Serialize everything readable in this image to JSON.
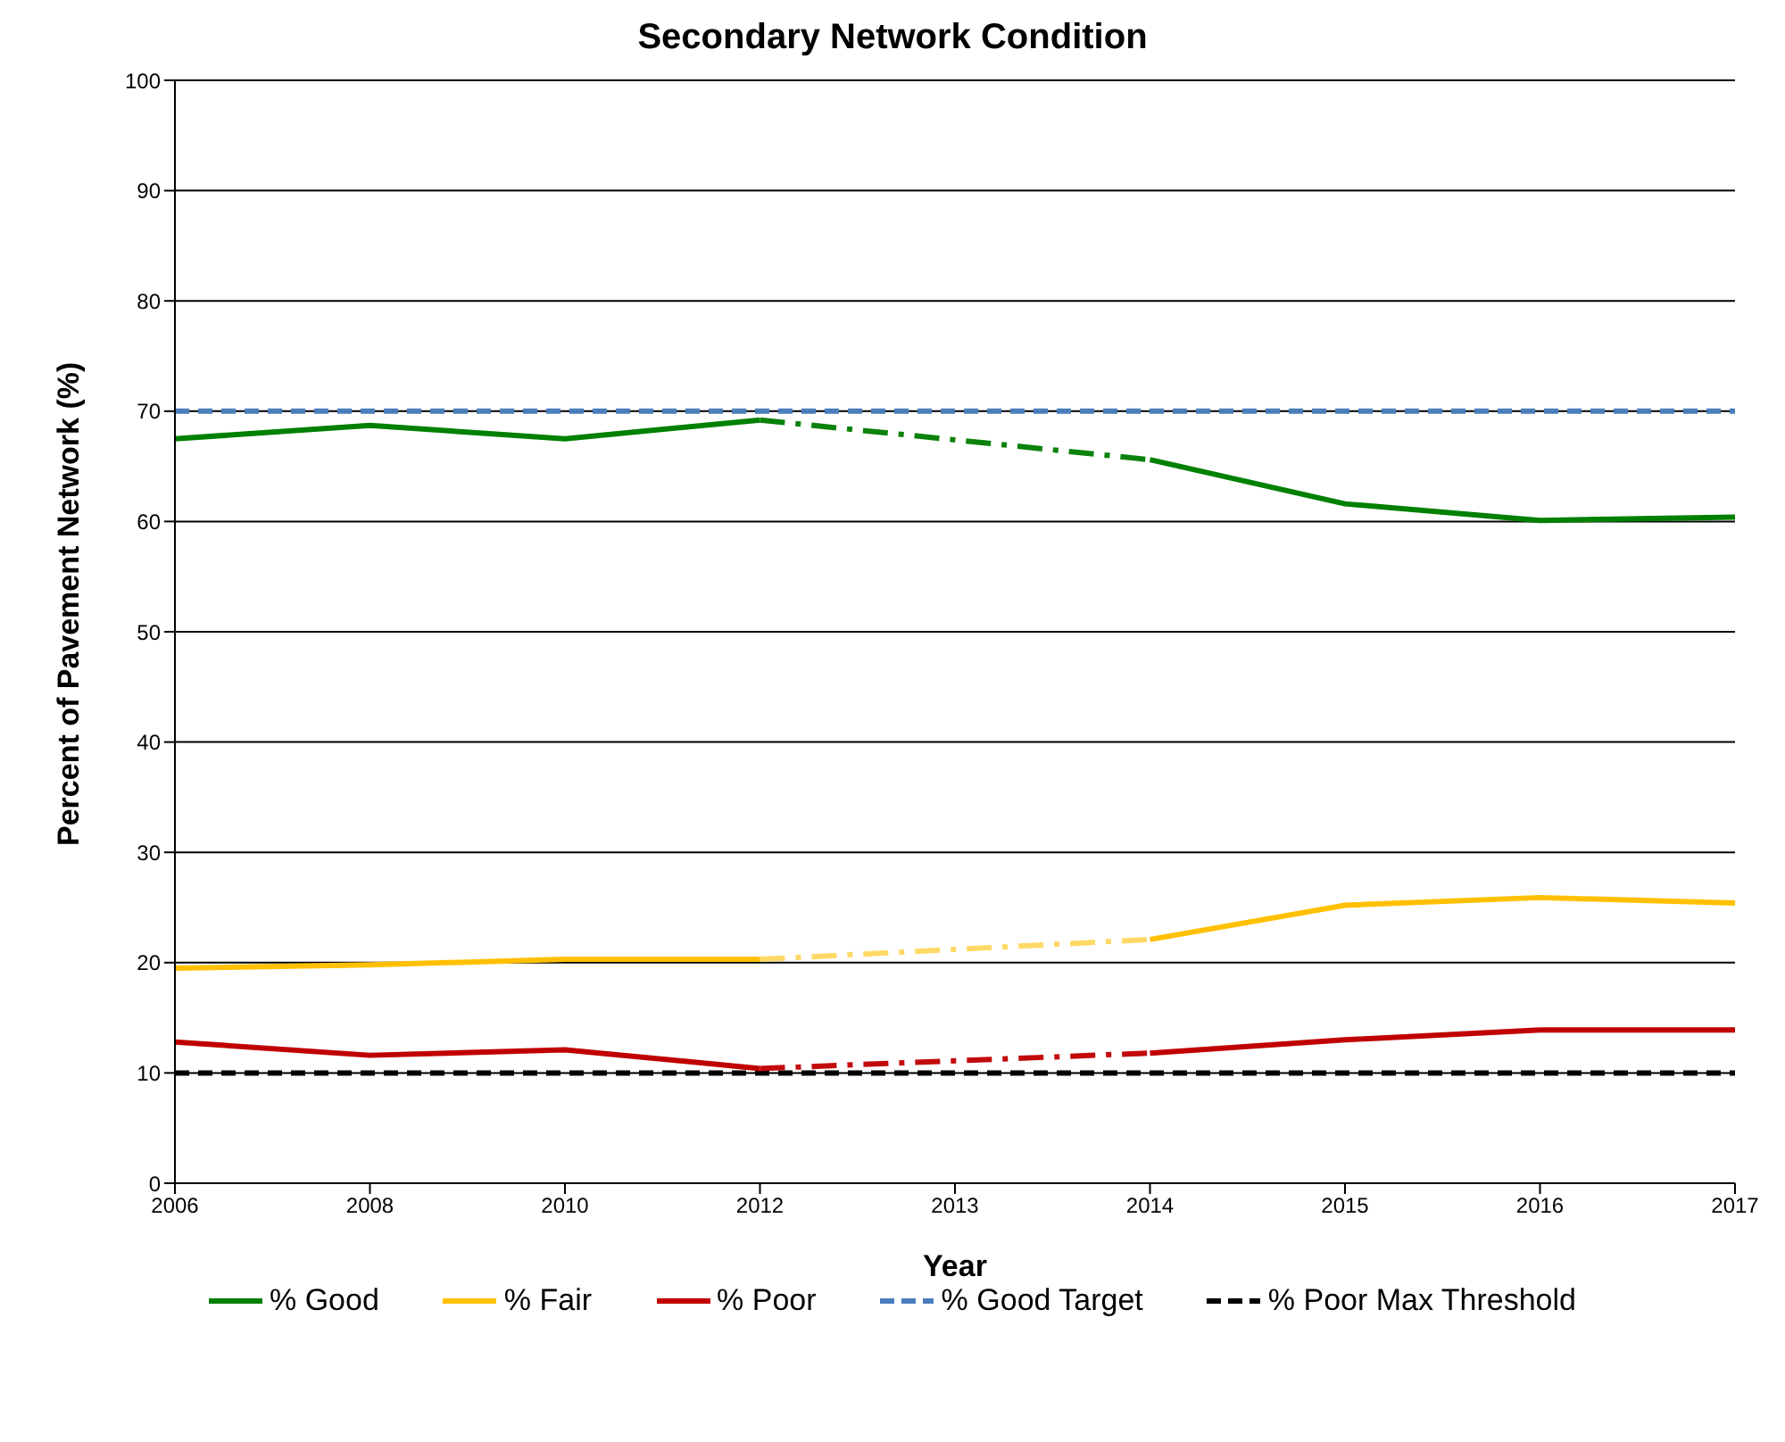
{
  "chart_data": {
    "type": "line",
    "title": "Secondary Network Condition",
    "xlabel": "Year",
    "ylabel": "Percent of Pavement Network (%)",
    "categories": [
      "2006",
      "2008",
      "2010",
      "2012",
      "2013",
      "2014",
      "2015",
      "2016",
      "2017"
    ],
    "series": [
      {
        "name": "% Good",
        "color": "#008000",
        "line_style": "solid",
        "values": [
          67.5,
          68.7,
          67.5,
          69.2,
          null,
          65.6,
          61.6,
          60.1,
          60.4
        ]
      },
      {
        "name": "% Fair",
        "color": "#ffc000",
        "line_style": "solid",
        "values": [
          19.5,
          19.8,
          20.3,
          20.3,
          null,
          22.1,
          25.2,
          25.9,
          25.4
        ]
      },
      {
        "name": "% Poor",
        "color": "#c00000",
        "line_style": "solid",
        "values": [
          12.8,
          11.6,
          12.1,
          10.4,
          null,
          11.8,
          13.0,
          13.9,
          13.9
        ]
      },
      {
        "color": "#0b820b",
        "line_style": "dashed",
        "values": [
          null,
          null,
          null,
          69.2,
          null,
          65.6,
          null,
          null,
          null
        ]
      },
      {
        "color": "#ffd966",
        "line_style": "dashed",
        "values": [
          null,
          null,
          null,
          20.3,
          null,
          22.1,
          null,
          null,
          null
        ]
      },
      {
        "color": "#c20a0a",
        "line_style": "dashed",
        "values": [
          null,
          null,
          null,
          10.4,
          null,
          11.8,
          null,
          null,
          null
        ]
      }
    ],
    "ref_lines": [
      {
        "axis": "y",
        "value": 70,
        "label": "% Good Target",
        "color": "#4a7ebb",
        "line_style": "dashed"
      },
      {
        "axis": "y",
        "value": 10,
        "label": "% Poor Max Threshold",
        "color": "#000000",
        "line_style": "dashed"
      }
    ],
    "ylim": [
      0,
      100
    ],
    "yticks": [
      0,
      10,
      20,
      30,
      40,
      50,
      60,
      70,
      80,
      90,
      100
    ],
    "grid": "y",
    "legend": "bottom",
    "marker": "none"
  }
}
